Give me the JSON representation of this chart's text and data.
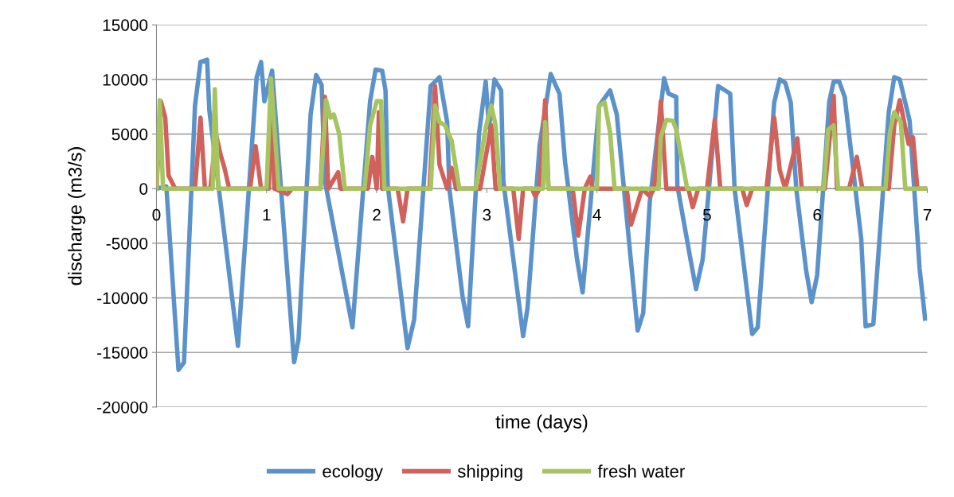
{
  "chart_data": {
    "type": "line",
    "xlabel": "time (days)",
    "ylabel": "discharge (m3/s)",
    "xlim": [
      0,
      7
    ],
    "xticks": [
      0,
      1,
      2,
      3,
      4,
      5,
      6,
      7
    ],
    "ylim": [
      -20000,
      15000
    ],
    "yticks": [
      -20000,
      -15000,
      -10000,
      -5000,
      0,
      5000,
      10000,
      15000
    ],
    "grid": "y",
    "legend": "bottom",
    "marker": "none",
    "line_style": "solid",
    "series": [
      {
        "name": "ecology",
        "color": "#5b92c9",
        "x": [
          0.0,
          0.09,
          0.2,
          0.25,
          0.35,
          0.4,
          0.46,
          0.48,
          0.74,
          0.91,
          0.95,
          0.98,
          1.05,
          1.25,
          1.29,
          1.4,
          1.45,
          1.5,
          1.53,
          1.78,
          1.94,
          1.99,
          2.05,
          2.08,
          2.1,
          2.28,
          2.34,
          2.49,
          2.57,
          2.64,
          2.66,
          2.78,
          2.83,
          2.93,
          2.99,
          3.02,
          3.07,
          3.13,
          3.15,
          3.33,
          3.37,
          3.48,
          3.58,
          3.66,
          3.71,
          3.82,
          3.87,
          4.02,
          4.12,
          4.18,
          4.37,
          4.42,
          4.48,
          4.61,
          4.65,
          4.72,
          4.73,
          4.85,
          4.9,
          4.96,
          5.1,
          5.21,
          5.25,
          5.41,
          5.46,
          5.61,
          5.66,
          5.71,
          5.76,
          5.81,
          5.9,
          5.95,
          6.0,
          6.11,
          6.15,
          6.2,
          6.25,
          6.4,
          6.44,
          6.51,
          6.65,
          6.7,
          6.75,
          6.84,
          6.93,
          6.98
        ],
        "values": [
          0,
          200,
          -16600,
          -15900,
          7600,
          11600,
          11800,
          7200,
          -14400,
          10200,
          11600,
          8000,
          10800,
          -15900,
          -13800,
          6800,
          10400,
          9500,
          700,
          -12700,
          8000,
          10900,
          10800,
          9000,
          300,
          -14600,
          -12000,
          9400,
          10200,
          6100,
          0,
          -9900,
          -12600,
          5100,
          9800,
          5600,
          10000,
          9000,
          700,
          -13500,
          -10900,
          4000,
          10500,
          8700,
          2500,
          -6500,
          -9500,
          7600,
          9000,
          6800,
          -13000,
          -11400,
          -1200,
          10100,
          8700,
          8400,
          300,
          -6500,
          -9200,
          -6500,
          9400,
          8700,
          0,
          -13300,
          -12700,
          7900,
          10000,
          9700,
          7900,
          0,
          -7500,
          -10400,
          -7900,
          8000,
          9800,
          9800,
          8400,
          -4600,
          -12600,
          -12400,
          7000,
          10200,
          10000,
          6200,
          -7300,
          -11900
        ]
      },
      {
        "name": "shipping",
        "color": "#d0615b",
        "x": [
          0.0,
          0.04,
          0.08,
          0.11,
          0.17,
          0.35,
          0.4,
          0.44,
          0.49,
          0.54,
          0.58,
          0.62,
          0.66,
          0.85,
          0.9,
          0.95,
          1.02,
          1.05,
          1.07,
          1.19,
          1.23,
          1.49,
          1.53,
          1.56,
          1.65,
          1.67,
          1.92,
          1.96,
          2.0,
          2.02,
          2.05,
          2.19,
          2.24,
          2.28,
          2.48,
          2.53,
          2.57,
          2.64,
          2.68,
          2.72,
          2.94,
          3.04,
          3.08,
          3.24,
          3.29,
          3.33,
          3.41,
          3.44,
          3.48,
          3.53,
          3.56,
          3.78,
          3.83,
          3.89,
          3.94,
          3.96,
          4.27,
          4.31,
          4.41,
          4.48,
          4.52,
          4.58,
          4.63,
          4.83,
          4.87,
          4.92,
          5.0,
          5.07,
          5.12,
          5.32,
          5.36,
          5.41,
          5.54,
          5.61,
          5.66,
          5.71,
          5.82,
          5.86,
          6.07,
          6.15,
          6.18,
          6.29,
          6.36,
          6.41,
          6.65,
          6.7,
          6.75,
          6.83,
          6.87,
          6.91,
          6.98
        ],
        "values": [
          0,
          8000,
          6500,
          1200,
          0,
          0,
          6500,
          0,
          0,
          5000,
          3200,
          1800,
          0,
          0,
          3900,
          0,
          0,
          9000,
          0,
          -500,
          0,
          0,
          8400,
          0,
          1500,
          0,
          0,
          2900,
          0,
          7000,
          0,
          0,
          -3000,
          0,
          0,
          9400,
          2200,
          0,
          1900,
          0,
          0,
          5800,
          0,
          0,
          -4600,
          0,
          0,
          -700,
          0,
          8100,
          0,
          0,
          -4300,
          0,
          1100,
          0,
          0,
          -3300,
          0,
          -700,
          0,
          8000,
          0,
          0,
          -1700,
          0,
          0,
          6300,
          0,
          0,
          -1500,
          0,
          0,
          6500,
          1700,
          0,
          4600,
          0,
          0,
          8500,
          0,
          0,
          2900,
          0,
          0,
          5800,
          8100,
          4100,
          4700,
          0,
          0
        ]
      },
      {
        "name": "fresh water",
        "color": "#a6c460",
        "x": [
          0.0,
          0.03,
          0.06,
          0.51,
          0.53,
          0.56,
          1.0,
          1.04,
          1.11,
          1.49,
          1.54,
          1.58,
          1.61,
          1.66,
          1.71,
          1.89,
          1.94,
          2.0,
          2.04,
          2.07,
          2.49,
          2.53,
          2.57,
          2.62,
          2.68,
          2.75,
          2.9,
          2.99,
          3.04,
          3.08,
          3.12,
          3.51,
          3.53,
          3.56,
          4.0,
          4.02,
          4.07,
          4.12,
          4.16,
          4.56,
          4.58,
          4.63,
          4.69,
          4.72,
          4.82,
          6.06,
          6.1,
          6.15,
          6.19,
          6.62,
          6.66,
          6.7,
          6.76,
          6.8,
          7.0
        ],
        "values": [
          0,
          8100,
          0,
          0,
          9100,
          0,
          0,
          10100,
          0,
          0,
          8100,
          6500,
          6800,
          5000,
          0,
          0,
          5800,
          8000,
          8000,
          0,
          0,
          7600,
          6100,
          5800,
          4400,
          0,
          0,
          5600,
          7600,
          5800,
          0,
          0,
          6100,
          0,
          0,
          7600,
          7900,
          5100,
          0,
          0,
          4700,
          6300,
          6200,
          5400,
          0,
          0,
          5400,
          5800,
          0,
          0,
          5100,
          7000,
          6100,
          0,
          0
        ]
      }
    ]
  }
}
